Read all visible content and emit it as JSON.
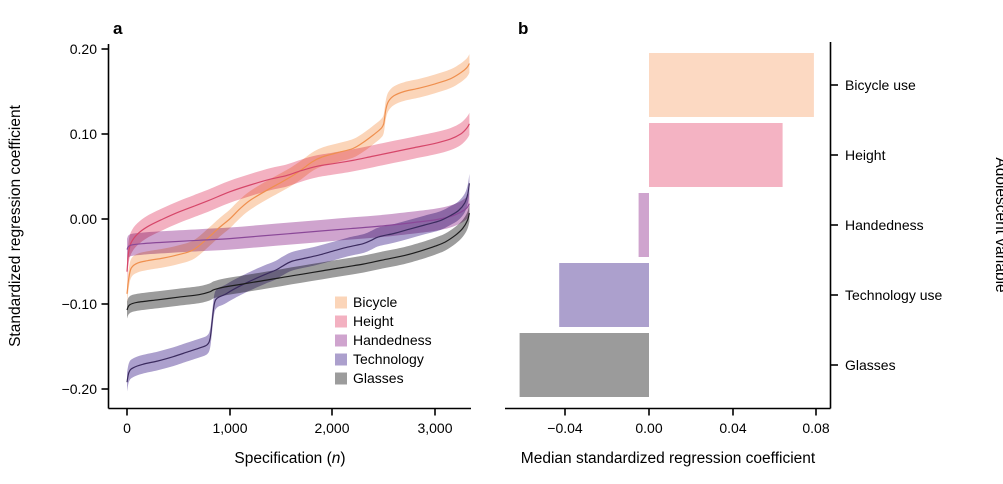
{
  "panels": {
    "a": {
      "panel_label": "a",
      "y_axis_title": "Standardized regression coefficient",
      "x_axis_title": {
        "prefix": "Specification (",
        "italic": "n",
        "suffix": ")"
      },
      "y_tick_labels": [
        "0.20",
        "0.10",
        "0.00",
        "−0.10",
        "−0.20"
      ],
      "x_tick_labels": [
        "0",
        "1,000",
        "2,000",
        "3,000"
      ],
      "legend_items": [
        "Bicycle",
        "Height",
        "Handedness",
        "Technology",
        "Glasses"
      ]
    },
    "b": {
      "panel_label": "b",
      "x_axis_title": "Median standardized regression coefficient",
      "y_axis_title": "Adolescent variable",
      "x_tick_labels": [
        "−0.04",
        "0.00",
        "0.04",
        "0.08"
      ],
      "category_labels": [
        "Bicycle use",
        "Height",
        "Handedness",
        "Technology use",
        "Glasses"
      ]
    }
  },
  "chart_data": [
    {
      "panel": "a",
      "type": "line",
      "subtype": "specification-curve-with-ribbon",
      "title": "",
      "xlabel": "Specification (n)",
      "ylabel": "Standardized regression coefficient",
      "xlim": [
        0,
        3400
      ],
      "ylim": [
        -0.21,
        0.21
      ],
      "x_ticks": [
        0,
        1000,
        2000,
        3000
      ],
      "y_ticks": [
        0.2,
        0.1,
        0.0,
        -0.1,
        -0.2
      ],
      "grid": false,
      "legend_position": "inside-bottom-right",
      "series": [
        {
          "name": "Bicycle",
          "band_color": "#FBD5B9",
          "line_color": "#EF8F4E",
          "band_halfwidth": 0.011,
          "points": [
            [
              0,
              -0.088
            ],
            [
              15,
              -0.072
            ],
            [
              40,
              -0.058
            ],
            [
              100,
              -0.052
            ],
            [
              200,
              -0.049
            ],
            [
              350,
              -0.046
            ],
            [
              500,
              -0.042
            ],
            [
              650,
              -0.036
            ],
            [
              800,
              -0.021
            ],
            [
              900,
              -0.01
            ],
            [
              1000,
              0.0
            ],
            [
              1100,
              0.012
            ],
            [
              1200,
              0.022
            ],
            [
              1350,
              0.033
            ],
            [
              1500,
              0.043
            ],
            [
              1600,
              0.05
            ],
            [
              1700,
              0.058
            ],
            [
              1800,
              0.067
            ],
            [
              1900,
              0.073
            ],
            [
              2050,
              0.078
            ],
            [
              2200,
              0.083
            ],
            [
              2300,
              0.09
            ],
            [
              2400,
              0.099
            ],
            [
              2470,
              0.106
            ],
            [
              2500,
              0.112
            ],
            [
              2520,
              0.128
            ],
            [
              2545,
              0.138
            ],
            [
              2600,
              0.145
            ],
            [
              2700,
              0.15
            ],
            [
              2850,
              0.154
            ],
            [
              3000,
              0.159
            ],
            [
              3150,
              0.165
            ],
            [
              3250,
              0.172
            ],
            [
              3310,
              0.178
            ],
            [
              3335,
              0.183
            ]
          ]
        },
        {
          "name": "Height",
          "band_color": "#F3B1C1",
          "line_color": "#D64669",
          "band_halfwidth": 0.013,
          "points": [
            [
              0,
              -0.062
            ],
            [
              15,
              -0.04
            ],
            [
              40,
              -0.028
            ],
            [
              100,
              -0.018
            ],
            [
              200,
              -0.009
            ],
            [
              350,
              0.0
            ],
            [
              500,
              0.008
            ],
            [
              650,
              0.015
            ],
            [
              800,
              0.022
            ],
            [
              1000,
              0.032
            ],
            [
              1200,
              0.04
            ],
            [
              1400,
              0.047
            ],
            [
              1550,
              0.051
            ],
            [
              1700,
              0.057
            ],
            [
              1850,
              0.062
            ],
            [
              2000,
              0.065
            ],
            [
              2200,
              0.069
            ],
            [
              2400,
              0.074
            ],
            [
              2600,
              0.079
            ],
            [
              2800,
              0.084
            ],
            [
              3000,
              0.089
            ],
            [
              3150,
              0.094
            ],
            [
              3250,
              0.1
            ],
            [
              3310,
              0.107
            ],
            [
              3335,
              0.112
            ]
          ]
        },
        {
          "name": "Handedness",
          "band_color": "#CFA4CE",
          "line_color": "#8A4898",
          "band_halfwidth": 0.013,
          "points": [
            [
              0,
              -0.036
            ],
            [
              30,
              -0.031
            ],
            [
              150,
              -0.029
            ],
            [
              400,
              -0.027
            ],
            [
              700,
              -0.025
            ],
            [
              1000,
              -0.023
            ],
            [
              1300,
              -0.02
            ],
            [
              1600,
              -0.017
            ],
            [
              1900,
              -0.014
            ],
            [
              2200,
              -0.011
            ],
            [
              2500,
              -0.008
            ],
            [
              2800,
              -0.004
            ],
            [
              3000,
              -0.001
            ],
            [
              3150,
              0.003
            ],
            [
              3250,
              0.008
            ],
            [
              3310,
              0.013
            ],
            [
              3335,
              0.018
            ]
          ]
        },
        {
          "name": "Technology",
          "band_color": "#ACA0CD",
          "line_color": "#3B2B5F",
          "band_halfwidth": 0.011,
          "points": [
            [
              0,
              -0.192
            ],
            [
              20,
              -0.18
            ],
            [
              60,
              -0.175
            ],
            [
              150,
              -0.171
            ],
            [
              300,
              -0.167
            ],
            [
              450,
              -0.162
            ],
            [
              600,
              -0.156
            ],
            [
              700,
              -0.152
            ],
            [
              780,
              -0.148
            ],
            [
              810,
              -0.14
            ],
            [
              830,
              -0.12
            ],
            [
              850,
              -0.1
            ],
            [
              880,
              -0.093
            ],
            [
              950,
              -0.089
            ],
            [
              1050,
              -0.082
            ],
            [
              1200,
              -0.073
            ],
            [
              1350,
              -0.065
            ],
            [
              1450,
              -0.06
            ],
            [
              1520,
              -0.055
            ],
            [
              1600,
              -0.05
            ],
            [
              1700,
              -0.047
            ],
            [
              1850,
              -0.043
            ],
            [
              2000,
              -0.038
            ],
            [
              2150,
              -0.033
            ],
            [
              2300,
              -0.029
            ],
            [
              2380,
              -0.025
            ],
            [
              2450,
              -0.021
            ],
            [
              2600,
              -0.017
            ],
            [
              2750,
              -0.012
            ],
            [
              2900,
              -0.007
            ],
            [
              3050,
              -0.002
            ],
            [
              3150,
              0.004
            ],
            [
              3230,
              0.01
            ],
            [
              3290,
              0.019
            ],
            [
              3320,
              0.03
            ],
            [
              3335,
              0.042
            ]
          ]
        },
        {
          "name": "Glasses",
          "band_color": "#9C9C9C",
          "line_color": "#1C1C1C",
          "band_halfwidth": 0.01,
          "points": [
            [
              0,
              -0.107
            ],
            [
              25,
              -0.101
            ],
            [
              100,
              -0.098
            ],
            [
              300,
              -0.095
            ],
            [
              500,
              -0.092
            ],
            [
              700,
              -0.089
            ],
            [
              800,
              -0.086
            ],
            [
              850,
              -0.083
            ],
            [
              950,
              -0.08
            ],
            [
              1100,
              -0.077
            ],
            [
              1300,
              -0.073
            ],
            [
              1500,
              -0.069
            ],
            [
              1700,
              -0.065
            ],
            [
              1900,
              -0.061
            ],
            [
              2100,
              -0.057
            ],
            [
              2300,
              -0.053
            ],
            [
              2500,
              -0.048
            ],
            [
              2700,
              -0.043
            ],
            [
              2850,
              -0.038
            ],
            [
              3000,
              -0.032
            ],
            [
              3100,
              -0.027
            ],
            [
              3200,
              -0.019
            ],
            [
              3270,
              -0.011
            ],
            [
              3315,
              -0.002
            ],
            [
              3335,
              0.007
            ]
          ]
        }
      ]
    },
    {
      "panel": "b",
      "type": "bar",
      "orientation": "horizontal",
      "title": "",
      "xlabel": "Median standardized regression coefficient",
      "ylabel": "Adolescent variable",
      "xlim": [
        -0.07,
        0.09
      ],
      "x_ticks": [
        -0.04,
        0.0,
        0.04,
        0.08
      ],
      "grid": false,
      "categories": [
        "Bicycle use",
        "Height",
        "Handedness",
        "Technology use",
        "Glasses"
      ],
      "values": [
        0.079,
        0.064,
        -0.005,
        -0.043,
        -0.062
      ],
      "colors": [
        "#FCD9C2",
        "#F4B3C3",
        "#CFA4CE",
        "#ACA0CD",
        "#9B9B9B"
      ]
    }
  ]
}
